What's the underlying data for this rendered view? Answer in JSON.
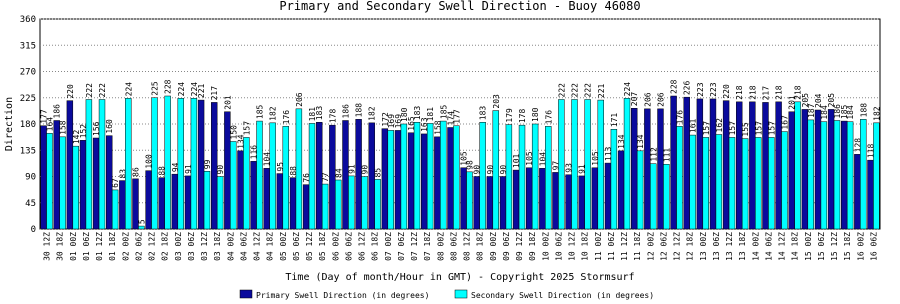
{
  "chart_data": {
    "type": "bar",
    "title": "Primary and Secondary Swell Direction - Buoy 46080",
    "x_label": "Time (Day of month/Hour in GMT) - Copyright 2025 Stormsurf",
    "y_label": "Direction",
    "categories": [
      "30 12Z",
      "30 18Z",
      "01 00Z",
      "01 06Z",
      "01 12Z",
      "01 18Z",
      "02 00Z",
      "02 06Z",
      "02 12Z",
      "02 18Z",
      "03 00Z",
      "03 06Z",
      "03 12Z",
      "03 18Z",
      "04 00Z",
      "04 06Z",
      "04 12Z",
      "04 18Z",
      "05 00Z",
      "05 06Z",
      "05 12Z",
      "05 18Z",
      "06 00Z",
      "06 06Z",
      "06 12Z",
      "06 18Z",
      "07 00Z",
      "07 06Z",
      "07 12Z",
      "07 18Z",
      "08 00Z",
      "08 06Z",
      "08 12Z",
      "08 18Z",
      "09 00Z",
      "09 06Z",
      "09 12Z",
      "09 18Z",
      "10 00Z",
      "10 06Z",
      "10 12Z",
      "10 18Z",
      "11 00Z",
      "11 06Z",
      "11 12Z",
      "11 18Z",
      "12 00Z",
      "12 06Z",
      "12 12Z",
      "12 18Z",
      "13 00Z",
      "13 06Z",
      "13 12Z",
      "13 18Z",
      "14 00Z",
      "14 06Z",
      "14 12Z",
      "14 18Z",
      "15 00Z",
      "15 06Z",
      "15 12Z",
      "15 18Z",
      "16 00Z",
      "16 06Z"
    ],
    "series": [
      {
        "name": "Primary Swell Direction (in degrees)",
        "color": "#0a0a9c",
        "values": [
          177,
          186,
          220,
          152,
          156,
          160,
          83,
          86,
          100,
          88,
          94,
          91,
          221,
          217,
          201,
          134,
          116,
          104,
          95,
          88,
          76,
          183,
          178,
          186,
          188,
          182,
          172,
          169,
          165,
          163,
          158,
          174,
          105,
          90,
          90,
          90,
          101,
          105,
          104,
          97,
          93,
          91,
          105,
          113,
          134,
          207,
          206,
          206,
          228,
          226,
          223,
          223,
          220,
          218,
          218,
          217,
          218,
          201,
          205,
          204,
          205,
          185,
          128,
          118
        ]
      },
      {
        "name": "Secondary Swell Direction (in degrees)",
        "color": "#00ffff",
        "values": [
          164,
          158,
          142,
          222,
          222,
          67,
          224,
          5,
          225,
          228,
          224,
          224,
          99,
          90,
          150,
          157,
          185,
          182,
          176,
          206,
          181,
          77,
          84,
          91,
          90,
          85,
          169,
          180,
          183,
          181,
          185,
          177,
          98,
          183,
          203,
          179,
          178,
          180,
          176,
          222,
          222,
          222,
          221,
          171,
          224,
          134,
          112,
          111,
          176,
          161,
          157,
          162,
          157,
          155,
          157,
          157,
          167,
          218,
          187,
          184,
          186,
          184,
          188,
          182
        ]
      }
    ],
    "ylim": [
      0,
      360
    ],
    "yticks": [
      0,
      45,
      90,
      135,
      180,
      225,
      270,
      315,
      360
    ],
    "grid": true
  }
}
